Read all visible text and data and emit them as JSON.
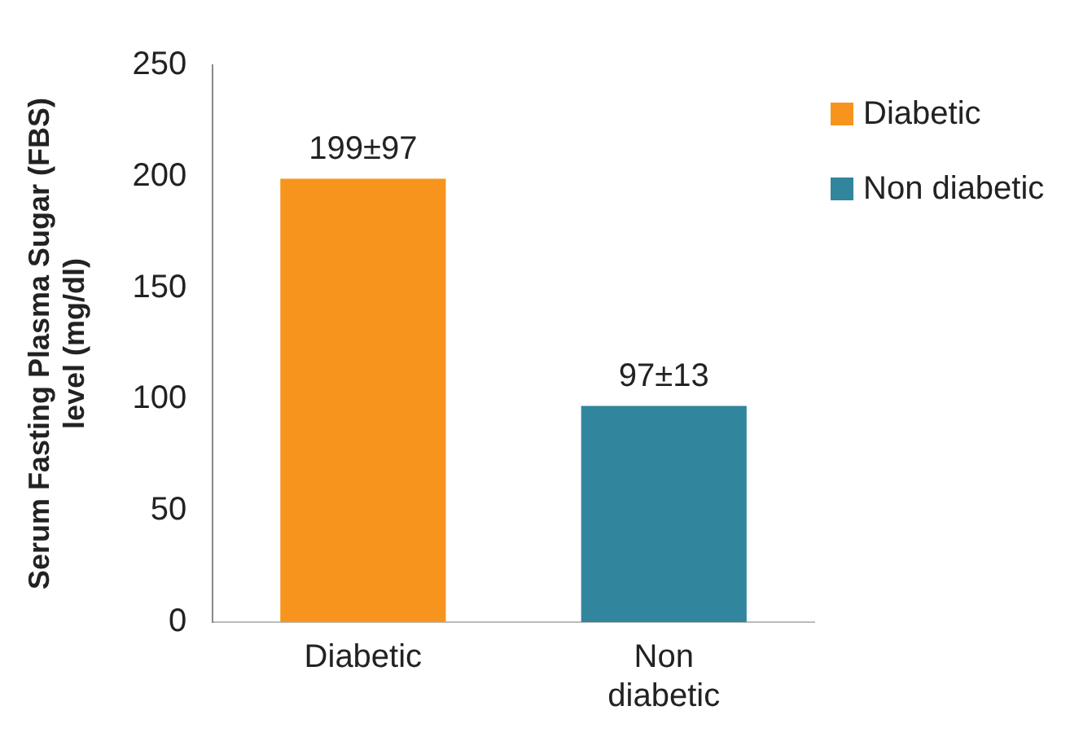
{
  "chart_data": {
    "type": "bar",
    "ylabel": "Serum Fasting Plasma Sugar (FBS) level (mg/dl)",
    "categories": [
      "Diabetic",
      "Non diabetic"
    ],
    "series": [
      {
        "name": "Diabetic",
        "color": "#f7941d",
        "values": [
          199,
          null
        ],
        "value_labels": [
          "199±97",
          null
        ]
      },
      {
        "name": "Non diabetic",
        "color": "#31859c",
        "values": [
          null,
          97
        ],
        "value_labels": [
          null,
          "97±13"
        ]
      }
    ],
    "ylim": [
      0,
      250
    ],
    "yticks": [
      0,
      50,
      100,
      150,
      200,
      250
    ],
    "grid": false,
    "legend": "right"
  }
}
